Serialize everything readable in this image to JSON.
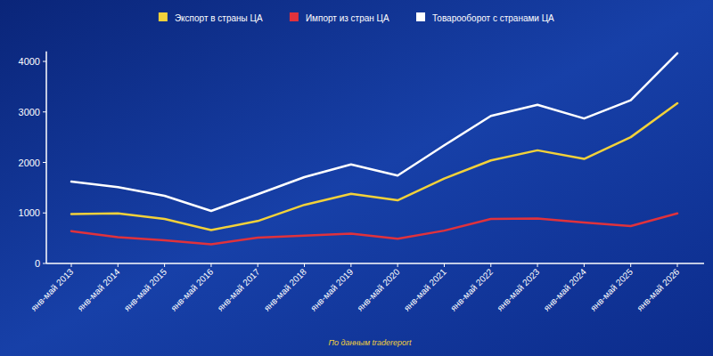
{
  "chart_data": {
    "type": "line",
    "categories": [
      "янв-май 2013",
      "янв-май 2014",
      "янв-май 2015",
      "янв-май 2016",
      "янв-май 2017",
      "янв-май 2018",
      "янв-май 2019",
      "янв-май 2020",
      "янв-май 2021",
      "янв-май 2022",
      "янв-май 2023",
      "янв-май 2024",
      "янв-май 2025",
      "янв-май 2026"
    ],
    "series": [
      {
        "name": "Экспорт в страны ЦА",
        "color": "#f2d13a",
        "values": [
          980,
          990,
          880,
          660,
          840,
          1160,
          1380,
          1250,
          1680,
          2040,
          2240,
          2070,
          2500,
          3170
        ]
      },
      {
        "name": "Импорт из стран ЦА",
        "color": "#e0323c",
        "values": [
          640,
          520,
          460,
          380,
          510,
          550,
          590,
          490,
          650,
          880,
          890,
          810,
          740,
          990
        ]
      },
      {
        "name": "Товарооборот с странами ЦА",
        "color": "#ffffff",
        "values": [
          1620,
          1510,
          1340,
          1040,
          1370,
          1710,
          1960,
          1740,
          2340,
          2920,
          3140,
          2870,
          3230,
          4160
        ]
      }
    ],
    "ylim": [
      0,
      4200
    ],
    "yticks": [
      0,
      1000,
      2000,
      3000,
      4000
    ],
    "grid": false,
    "legend": "top",
    "annotations": [
      "По данным tradereport"
    ]
  }
}
